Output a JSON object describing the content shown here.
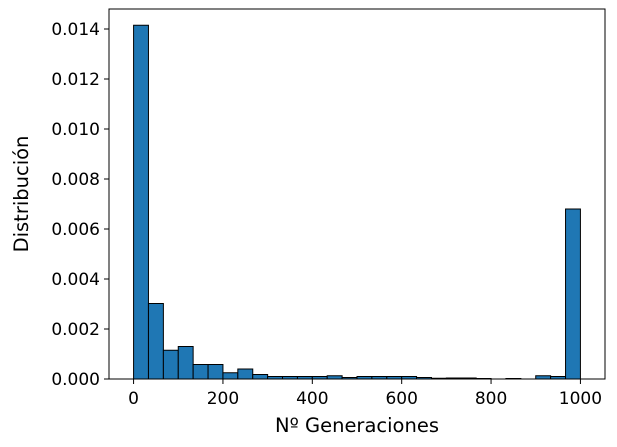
{
  "chart_data": {
    "type": "bar",
    "subtype": "histogram",
    "xlabel": "Nº Generaciones",
    "ylabel": "Distribución",
    "xlim": [
      -55,
      1055
    ],
    "ylim": [
      0,
      0.0148
    ],
    "xticks": [
      0,
      200,
      400,
      600,
      800,
      1000
    ],
    "xtick_labels": [
      "0",
      "200",
      "400",
      "600",
      "800",
      "1000"
    ],
    "yticks": [
      0,
      0.002,
      0.004,
      0.006,
      0.008,
      0.01,
      0.012,
      0.014
    ],
    "ytick_labels": [
      "0.000",
      "0.002",
      "0.004",
      "0.006",
      "0.008",
      "0.010",
      "0.012",
      "0.014"
    ],
    "bar_color": "#1f77b4",
    "edge_color": "#000000",
    "grid": false,
    "bins": [
      {
        "x0": 0,
        "x1": 33.3,
        "value": 0.01415
      },
      {
        "x0": 33.3,
        "x1": 66.7,
        "value": 0.00302
      },
      {
        "x0": 66.7,
        "x1": 100,
        "value": 0.00115
      },
      {
        "x0": 100,
        "x1": 133.3,
        "value": 0.0013
      },
      {
        "x0": 133.3,
        "x1": 166.7,
        "value": 0.00058
      },
      {
        "x0": 166.7,
        "x1": 200,
        "value": 0.00058
      },
      {
        "x0": 200,
        "x1": 233.3,
        "value": 0.00025
      },
      {
        "x0": 233.3,
        "x1": 266.7,
        "value": 0.0004
      },
      {
        "x0": 266.7,
        "x1": 300,
        "value": 0.00018
      },
      {
        "x0": 300,
        "x1": 333.3,
        "value": 0.0001
      },
      {
        "x0": 333.3,
        "x1": 366.7,
        "value": 0.0001
      },
      {
        "x0": 366.7,
        "x1": 400,
        "value": 0.0001
      },
      {
        "x0": 400,
        "x1": 433.3,
        "value": 0.0001
      },
      {
        "x0": 433.3,
        "x1": 466.7,
        "value": 0.00013
      },
      {
        "x0": 466.7,
        "x1": 500,
        "value": 6e-05
      },
      {
        "x0": 500,
        "x1": 533.3,
        "value": 0.0001
      },
      {
        "x0": 533.3,
        "x1": 566.7,
        "value": 0.0001
      },
      {
        "x0": 566.7,
        "x1": 600,
        "value": 0.0001
      },
      {
        "x0": 600,
        "x1": 633.3,
        "value": 0.0001
      },
      {
        "x0": 633.3,
        "x1": 666.7,
        "value": 6e-05
      },
      {
        "x0": 666.7,
        "x1": 700,
        "value": 3e-05
      },
      {
        "x0": 700,
        "x1": 733.3,
        "value": 4e-05
      },
      {
        "x0": 733.3,
        "x1": 766.7,
        "value": 4e-05
      },
      {
        "x0": 766.7,
        "x1": 800,
        "value": 2e-05
      },
      {
        "x0": 800,
        "x1": 833.3,
        "value": 0
      },
      {
        "x0": 833.3,
        "x1": 866.7,
        "value": 2e-05
      },
      {
        "x0": 866.7,
        "x1": 900,
        "value": 0
      },
      {
        "x0": 900,
        "x1": 933.3,
        "value": 0.00013
      },
      {
        "x0": 933.3,
        "x1": 966.7,
        "value": 0.0001
      },
      {
        "x0": 966.7,
        "x1": 1000,
        "value": 0.0068
      }
    ]
  }
}
